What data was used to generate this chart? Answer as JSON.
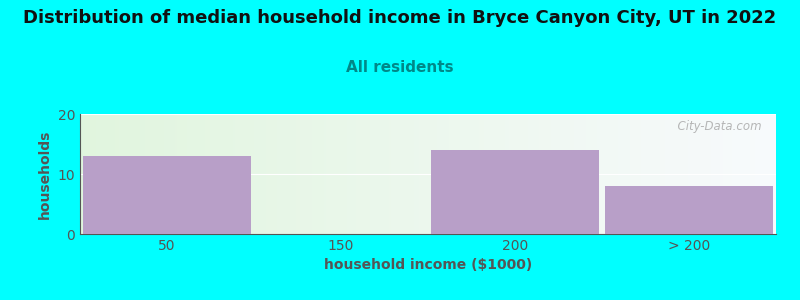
{
  "title": "Distribution of median household income in Bryce Canyon City, UT in 2022",
  "subtitle": "All residents",
  "xlabel": "household income ($1000)",
  "ylabel": "households",
  "background_color": "#00FFFF",
  "bar_color": "#b89fc8",
  "categories": [
    "50",
    "150",
    "200",
    "> 200"
  ],
  "values": [
    13,
    0,
    14,
    8
  ],
  "ylim": [
    0,
    20
  ],
  "yticks": [
    0,
    10,
    20
  ],
  "title_fontsize": 13,
  "subtitle_fontsize": 11,
  "label_fontsize": 10,
  "tick_fontsize": 10,
  "title_color": "#111111",
  "subtitle_color": "#008888",
  "axis_color": "#555555",
  "watermark_text": "  City-Data.com",
  "watermark_color": "#aaaaaa"
}
